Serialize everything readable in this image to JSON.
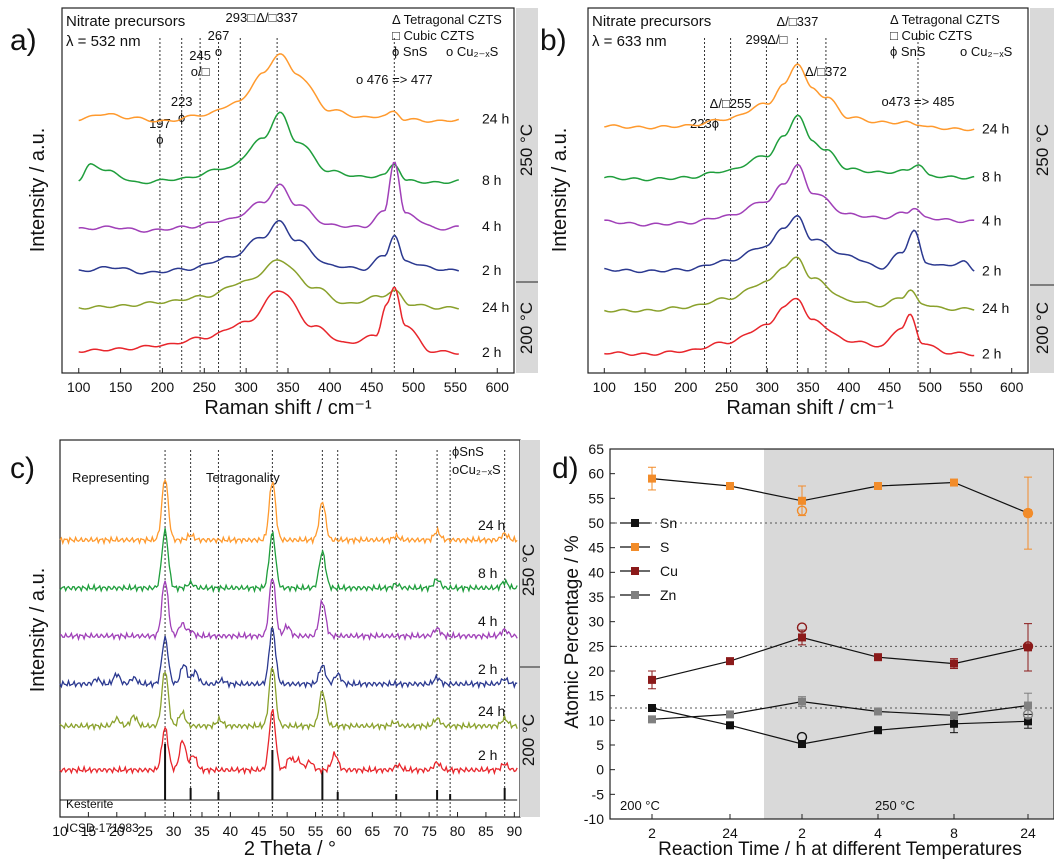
{
  "chart_data": [
    {
      "panel": "a)",
      "type": "line",
      "title_lines": [
        "Nitrate precursors",
        "λ = 532 nm"
      ],
      "legend": [
        "Δ Tetragonal CZTS",
        "□ Cubic CZTS",
        "ϕ SnS",
        "o Cu₂₋ₓS"
      ],
      "xlabel": "Raman shift / cm⁻¹",
      "ylabel": "Intensity / a.u.",
      "xlim": [
        80,
        620
      ],
      "xticks": [
        100,
        150,
        200,
        250,
        300,
        350,
        400,
        450,
        500,
        550,
        600
      ],
      "temperature_bands": [
        "250 °C",
        "200 °C"
      ],
      "peak_annotations": [
        {
          "x": 197,
          "label": "197",
          "symbol": "ϕ"
        },
        {
          "x": 223,
          "label": "223",
          "symbol": "ϕ"
        },
        {
          "x": 245,
          "label": "245",
          "symbol": "o/□"
        },
        {
          "x": 267,
          "label": "267",
          "symbol": "o"
        },
        {
          "x": 293,
          "label": "293□",
          "symbol": ""
        },
        {
          "x": 337,
          "label": "Δ/□337",
          "symbol": ""
        },
        {
          "x": 477,
          "label": "o 476 => 477",
          "symbol": ""
        }
      ],
      "series": [
        {
          "name": "24 h",
          "color": "#ff9a2e",
          "x": [
            100,
            130,
            160,
            200,
            250,
            290,
            320,
            340,
            360,
            400,
            440,
            465,
            477,
            490,
            530,
            555
          ],
          "y": [
            0.3,
            0.36,
            0.32,
            0.28,
            0.35,
            0.48,
            0.78,
            1.0,
            0.78,
            0.4,
            0.32,
            0.34,
            0.38,
            0.3,
            0.28,
            0.3
          ]
        },
        {
          "name": "8 h",
          "color": "#1f9e3c",
          "x": [
            100,
            115,
            135,
            170,
            220,
            280,
            320,
            340,
            360,
            400,
            440,
            465,
            477,
            492,
            530,
            555
          ],
          "y": [
            0.18,
            0.36,
            0.28,
            0.16,
            0.2,
            0.32,
            0.62,
            0.9,
            0.6,
            0.28,
            0.22,
            0.24,
            0.36,
            0.18,
            0.16,
            0.18
          ]
        },
        {
          "name": "4 h",
          "color": "#a040b8",
          "x": [
            100,
            140,
            180,
            230,
            280,
            320,
            340,
            360,
            400,
            440,
            465,
            477,
            490,
            530,
            555
          ],
          "y": [
            0.2,
            0.22,
            0.18,
            0.22,
            0.3,
            0.48,
            0.66,
            0.46,
            0.24,
            0.22,
            0.38,
            0.92,
            0.36,
            0.2,
            0.22
          ]
        },
        {
          "name": "2 h",
          "color": "#2b3990",
          "x": [
            100,
            140,
            180,
            230,
            280,
            320,
            340,
            360,
            400,
            440,
            465,
            477,
            490,
            530,
            555
          ],
          "y": [
            0.2,
            0.24,
            0.18,
            0.22,
            0.34,
            0.56,
            0.72,
            0.52,
            0.26,
            0.22,
            0.36,
            0.58,
            0.3,
            0.22,
            0.2
          ]
        },
        {
          "name": "24 h",
          "color": "#8aa12c",
          "x": [
            100,
            150,
            200,
            250,
            300,
            340,
            380,
            420,
            460,
            477,
            495,
            530,
            555
          ],
          "y": [
            0.18,
            0.2,
            0.24,
            0.3,
            0.46,
            0.68,
            0.4,
            0.22,
            0.3,
            0.36,
            0.22,
            0.18,
            0.18
          ]
        },
        {
          "name": "2 h",
          "color": "#e8262c",
          "x": [
            100,
            150,
            200,
            250,
            300,
            340,
            380,
            420,
            455,
            468,
            477,
            490,
            520,
            555
          ],
          "y": [
            0.2,
            0.22,
            0.26,
            0.34,
            0.5,
            0.84,
            0.46,
            0.28,
            0.36,
            0.7,
            0.86,
            0.48,
            0.2,
            0.18
          ]
        }
      ]
    },
    {
      "panel": "b)",
      "type": "line",
      "title_lines": [
        "Nitrate precursors",
        "λ = 633 nm"
      ],
      "legend": [
        "Δ Tetragonal CZTS",
        "□ Cubic CZTS",
        "ϕ SnS",
        "o Cu₂₋ₓS"
      ],
      "xlabel": "Raman shift / cm⁻¹",
      "ylabel": "Intensity / a.u.",
      "xlim": [
        80,
        620
      ],
      "xticks": [
        100,
        150,
        200,
        250,
        300,
        350,
        400,
        450,
        500,
        550,
        600
      ],
      "temperature_bands": [
        "250 °C",
        "200 °C"
      ],
      "peak_annotations": [
        {
          "x": 223,
          "label": "223ϕ"
        },
        {
          "x": 255,
          "label": "Δ/□255"
        },
        {
          "x": 299,
          "label": "299Δ/□"
        },
        {
          "x": 337,
          "label": "Δ/□337"
        },
        {
          "x": 372,
          "label": "Δ/□372"
        },
        {
          "x": 485,
          "label": "o473 => 485"
        }
      ],
      "series": [
        {
          "name": "24 h",
          "color": "#ff9a2e",
          "x": [
            100,
            150,
            200,
            250,
            300,
            320,
            337,
            355,
            372,
            400,
            440,
            470,
            485,
            500,
            540,
            555
          ],
          "y": [
            0.26,
            0.24,
            0.26,
            0.34,
            0.52,
            0.74,
            1.0,
            0.7,
            0.6,
            0.36,
            0.3,
            0.3,
            0.28,
            0.24,
            0.22,
            0.22
          ]
        },
        {
          "name": "8 h",
          "color": "#1f9e3c",
          "x": [
            100,
            150,
            200,
            250,
            300,
            320,
            337,
            355,
            372,
            400,
            440,
            470,
            485,
            500,
            540,
            555
          ],
          "y": [
            0.18,
            0.16,
            0.18,
            0.26,
            0.44,
            0.66,
            0.92,
            0.62,
            0.5,
            0.28,
            0.24,
            0.26,
            0.34,
            0.2,
            0.18,
            0.18
          ]
        },
        {
          "name": "4 h",
          "color": "#a040b8",
          "x": [
            100,
            150,
            200,
            250,
            300,
            320,
            337,
            355,
            400,
            440,
            470,
            480,
            495,
            540,
            555
          ],
          "y": [
            0.22,
            0.18,
            0.2,
            0.28,
            0.46,
            0.66,
            0.88,
            0.56,
            0.3,
            0.26,
            0.32,
            0.38,
            0.26,
            0.22,
            0.22
          ]
        },
        {
          "name": "2 h",
          "color": "#2b3990",
          "x": [
            100,
            150,
            200,
            250,
            300,
            320,
            337,
            355,
            400,
            440,
            465,
            480,
            495,
            520,
            540,
            555
          ],
          "y": [
            0.24,
            0.22,
            0.24,
            0.34,
            0.52,
            0.74,
            0.86,
            0.6,
            0.4,
            0.26,
            0.44,
            0.7,
            0.32,
            0.28,
            0.34,
            0.22
          ]
        },
        {
          "name": "24 h",
          "color": "#8aa12c",
          "x": [
            100,
            150,
            200,
            250,
            300,
            320,
            337,
            355,
            400,
            440,
            465,
            475,
            490,
            520,
            555
          ],
          "y": [
            0.18,
            0.18,
            0.22,
            0.32,
            0.52,
            0.7,
            0.8,
            0.56,
            0.3,
            0.24,
            0.34,
            0.42,
            0.26,
            0.2,
            0.2
          ]
        },
        {
          "name": "2 h",
          "color": "#e8262c",
          "x": [
            100,
            150,
            200,
            250,
            300,
            320,
            337,
            355,
            400,
            440,
            465,
            475,
            490,
            520,
            555
          ],
          "y": [
            0.18,
            0.16,
            0.2,
            0.3,
            0.5,
            0.72,
            0.82,
            0.56,
            0.32,
            0.26,
            0.48,
            0.62,
            0.3,
            0.18,
            0.16
          ]
        }
      ]
    },
    {
      "panel": "c)",
      "type": "line",
      "legend": [
        "ϕSnS",
        "oCu₂₋ₓS"
      ],
      "xlabel": "2 Theta / °",
      "ylabel": "Intensity / a.u.",
      "xlim": [
        10,
        91
      ],
      "xticks": [
        10,
        15,
        20,
        25,
        30,
        35,
        40,
        45,
        50,
        55,
        60,
        65,
        70,
        75,
        80,
        85,
        90
      ],
      "annotations": [
        "Representing",
        "Tetragonality"
      ],
      "reference": {
        "name": "Kesterite",
        "id": "ICSD-171983",
        "peaks": [
          28.5,
          33.0,
          37.9,
          47.4,
          56.2,
          58.9,
          69.2,
          76.4,
          78.7,
          88.3
        ]
      },
      "temperature_bands": [
        "250 °C",
        "200 °C"
      ],
      "series": [
        {
          "name": "24 h",
          "color": "#ff9a2e",
          "peaks": [
            [
              28.5,
              1.0
            ],
            [
              33.0,
              0.08
            ],
            [
              47.4,
              0.95
            ],
            [
              56.2,
              0.62
            ],
            [
              69.2,
              0.06
            ],
            [
              76.4,
              0.14
            ],
            [
              88.3,
              0.1
            ]
          ]
        },
        {
          "name": "8 h",
          "color": "#1f9e3c",
          "peaks": [
            [
              28.5,
              0.92
            ],
            [
              33.0,
              0.08
            ],
            [
              47.4,
              0.88
            ],
            [
              56.2,
              0.58
            ],
            [
              69.2,
              0.06
            ],
            [
              76.4,
              0.14
            ],
            [
              88.3,
              0.1
            ]
          ]
        },
        {
          "name": "4 h",
          "color": "#a040b8",
          "peaks": [
            [
              28.5,
              0.9
            ],
            [
              31.5,
              0.2
            ],
            [
              33.0,
              0.08
            ],
            [
              47.4,
              0.95
            ],
            [
              50.0,
              0.16
            ],
            [
              56.2,
              0.56
            ],
            [
              76.4,
              0.12
            ],
            [
              88.3,
              0.1
            ]
          ]
        },
        {
          "name": "2 h",
          "color": "#2b3990",
          "peaks": [
            [
              16.5,
              0.08
            ],
            [
              20.0,
              0.16
            ],
            [
              23.0,
              0.1
            ],
            [
              28.5,
              0.74
            ],
            [
              31.8,
              0.32
            ],
            [
              33.8,
              0.2
            ],
            [
              38.5,
              0.06
            ],
            [
              47.4,
              0.9
            ],
            [
              56.2,
              0.3
            ],
            [
              58.9,
              0.16
            ],
            [
              76.4,
              0.1
            ],
            [
              88.3,
              0.08
            ]
          ]
        },
        {
          "name": "24 h",
          "color": "#8aa12c",
          "peaks": [
            [
              20.0,
              0.12
            ],
            [
              23.0,
              0.16
            ],
            [
              28.5,
              0.9
            ],
            [
              31.5,
              0.22
            ],
            [
              38.1,
              0.1
            ],
            [
              47.4,
              0.96
            ],
            [
              56.2,
              0.56
            ],
            [
              69.0,
              0.06
            ],
            [
              76.4,
              0.12
            ],
            [
              88.3,
              0.12
            ]
          ]
        },
        {
          "name": "2 h",
          "color": "#e8262c",
          "peaks": [
            [
              28.5,
              0.68
            ],
            [
              31.6,
              0.48
            ],
            [
              33.5,
              0.24
            ],
            [
              47.4,
              0.96
            ],
            [
              50.5,
              0.2
            ],
            [
              52.0,
              0.16
            ],
            [
              54.0,
              0.14
            ],
            [
              58.4,
              0.26
            ],
            [
              69.5,
              0.08
            ],
            [
              76.4,
              0.12
            ],
            [
              88.3,
              0.1
            ]
          ]
        }
      ]
    },
    {
      "panel": "d)",
      "type": "line",
      "xlabel": "Reaction Time / h at different Temperatures",
      "ylabel": "Atomic Percentage / %",
      "ylim": [
        -10,
        65
      ],
      "yticks": [
        -10,
        -5,
        0,
        5,
        10,
        15,
        20,
        25,
        30,
        35,
        40,
        45,
        50,
        55,
        60,
        65
      ],
      "categories": [
        "2",
        "24",
        "2",
        "4",
        "8",
        "24"
      ],
      "region_labels": [
        "200 °C",
        "250 °C"
      ],
      "reference_lines": [
        50,
        25,
        12.5
      ],
      "series": [
        {
          "name": "Sn",
          "color": "#111111",
          "values": [
            12.5,
            9.0,
            5.2,
            8.0,
            9.3,
            9.8
          ],
          "errors": [
            0.6,
            0.5,
            0.5,
            0.5,
            1.8,
            1.4
          ]
        },
        {
          "name": "S",
          "color": "#f28c2a",
          "values": [
            59.0,
            57.5,
            54.5,
            57.5,
            58.2,
            52.0
          ],
          "errors": [
            2.3,
            0.6,
            3.0,
            0.5,
            0.6,
            7.3
          ]
        },
        {
          "name": "Cu",
          "color": "#8b1a1a",
          "values": [
            18.2,
            22.0,
            26.8,
            22.8,
            21.5,
            24.8
          ],
          "errors": [
            1.8,
            0.4,
            1.5,
            0.5,
            1.0,
            4.8
          ]
        },
        {
          "name": "Zn",
          "color": "#808080",
          "values": [
            10.2,
            11.2,
            13.8,
            11.8,
            11.0,
            13.0
          ],
          "errors": [
            0.6,
            0.5,
            1.0,
            0.5,
            0.6,
            2.5
          ]
        }
      ],
      "open_markers": [
        {
          "series": "S",
          "category_index": 2,
          "value": 52.5
        },
        {
          "series": "Cu",
          "category_index": 2,
          "value": 28.8
        },
        {
          "series": "Sn",
          "category_index": 2,
          "value": 6.6
        },
        {
          "series": "S",
          "category_index": 5,
          "value": 52.0
        },
        {
          "series": "Cu",
          "category_index": 5,
          "value": 25.0
        },
        {
          "series": "Zn",
          "category_index": 5,
          "value": 11.2
        }
      ]
    }
  ]
}
